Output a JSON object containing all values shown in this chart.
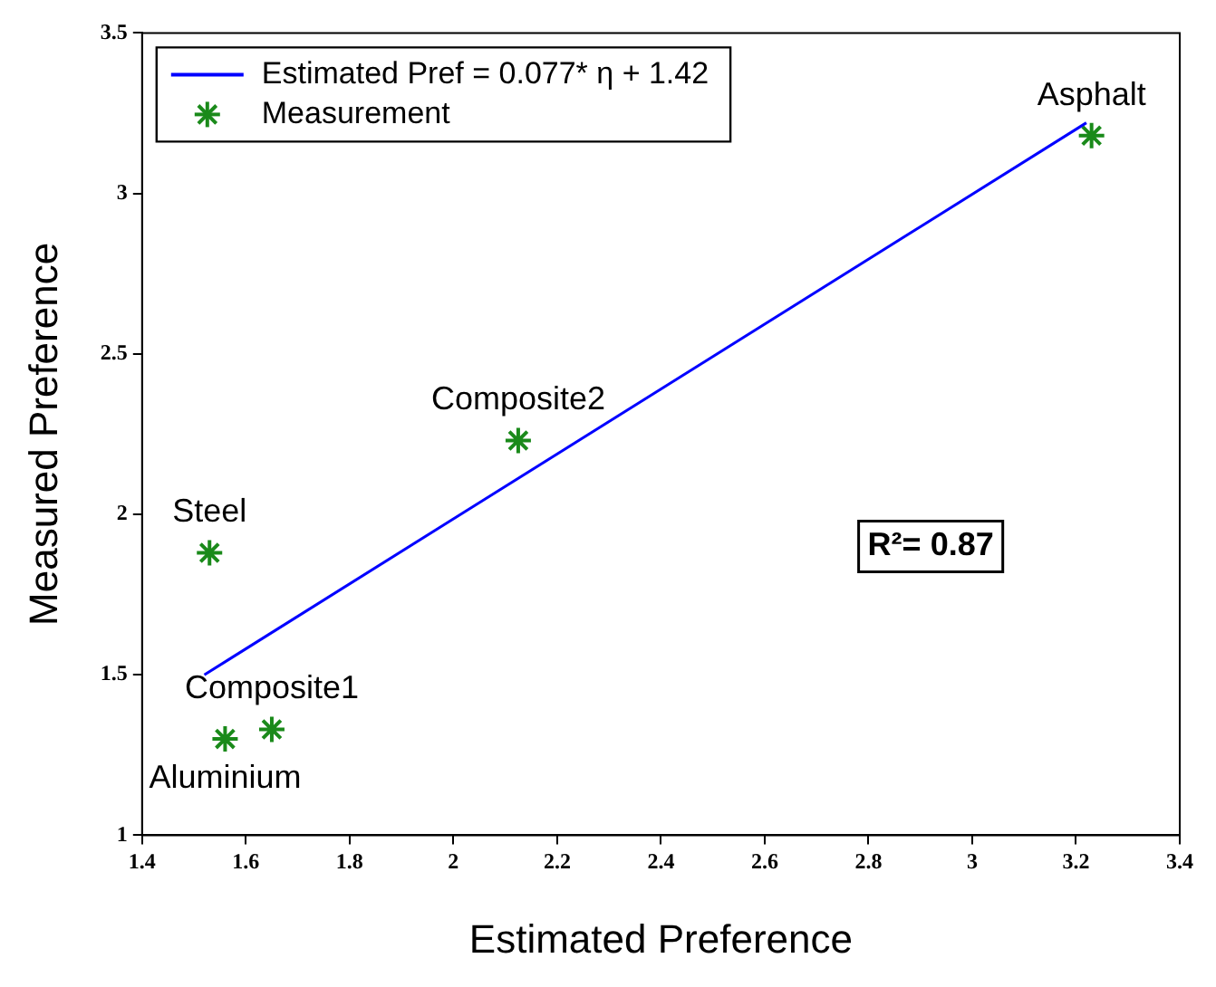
{
  "chart_data": {
    "type": "scatter",
    "xlabel": "Estimated Preference",
    "ylabel": "Measured Preference",
    "series": [
      {
        "name": "Estimated Pref = 0.077* η + 1.42",
        "type": "line",
        "color": "#0000ff",
        "x": [
          1.52,
          3.22
        ],
        "values": [
          1.5,
          3.22
        ],
        "marker": "none",
        "line_style": "solid"
      },
      {
        "name": "Measurement",
        "color": "#1a8a1a",
        "x": [
          3.23,
          2.125,
          1.53,
          1.65,
          1.56
        ],
        "values": [
          3.18,
          2.23,
          1.88,
          1.33,
          1.3
        ],
        "marker": "cross"
      }
    ],
    "annotations": [
      {
        "text": "Asphalt",
        "x": 3.23,
        "y": 3.18
      },
      {
        "text": "Composite2",
        "x": 2.125,
        "y": 2.23
      },
      {
        "text": "Steel",
        "x": 1.53,
        "y": 1.88
      },
      {
        "text": "Composite1",
        "x": 1.65,
        "y": 1.33
      },
      {
        "text": "Aluminium",
        "x": 1.56,
        "y": 1.3
      },
      "R²= 0.87"
    ],
    "xlim": [
      1.4,
      3.4
    ],
    "ylim": [
      1,
      3.5
    ],
    "xticks": [
      1.4,
      1.6,
      1.8,
      2,
      2.2,
      2.4,
      2.6,
      2.8,
      3,
      3.2,
      3.4
    ],
    "yticks": [
      1,
      1.5,
      2,
      2.5,
      3,
      3.5
    ],
    "grid": false,
    "legend": "top left"
  }
}
